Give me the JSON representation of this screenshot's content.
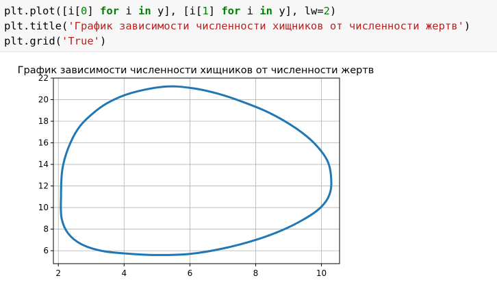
{
  "code_cell": {
    "lines": [
      [
        {
          "t": "plt.plot([i[",
          "c": "plain"
        },
        {
          "t": "0",
          "c": "num"
        },
        {
          "t": "] ",
          "c": "plain"
        },
        {
          "t": "for",
          "c": "kw"
        },
        {
          "t": " i ",
          "c": "plain"
        },
        {
          "t": "in",
          "c": "kw"
        },
        {
          "t": " y], [i[",
          "c": "plain"
        },
        {
          "t": "1",
          "c": "num"
        },
        {
          "t": "] ",
          "c": "plain"
        },
        {
          "t": "for",
          "c": "kw"
        },
        {
          "t": " i ",
          "c": "plain"
        },
        {
          "t": "in",
          "c": "kw"
        },
        {
          "t": " y], lw=",
          "c": "plain"
        },
        {
          "t": "2",
          "c": "num"
        },
        {
          "t": ")",
          "c": "plain"
        }
      ],
      [
        {
          "t": "plt.title(",
          "c": "plain"
        },
        {
          "t": "'График зависимости численности хищников от численности жертв'",
          "c": "str"
        },
        {
          "t": ")",
          "c": "plain"
        }
      ],
      [
        {
          "t": "plt.grid(",
          "c": "plain"
        },
        {
          "t": "'True'",
          "c": "str"
        },
        {
          "t": ")",
          "c": "plain"
        }
      ]
    ]
  },
  "chart_data": {
    "type": "line",
    "title": "График зависимости численности хищников от численности жертв",
    "xlabel": "",
    "ylabel": "",
    "xlim": [
      1.85,
      10.55
    ],
    "ylim": [
      4.8,
      22
    ],
    "xticks": [
      2,
      4,
      6,
      8,
      10
    ],
    "yticks": [
      6,
      8,
      10,
      12,
      14,
      16,
      18,
      20,
      22
    ],
    "grid": true,
    "series": [
      {
        "color": "#1f77b4",
        "x": [
          5.2,
          6.0,
          6.8,
          7.6,
          8.4,
          9.2,
          9.8,
          10.2,
          10.3,
          10.2,
          9.9,
          9.4,
          8.8,
          8.0,
          7.0,
          6.0,
          5.0,
          4.0,
          3.3,
          2.7,
          2.3,
          2.1,
          2.08,
          2.12,
          2.3,
          2.6,
          3.0,
          3.5,
          4.2,
          5.2
        ],
        "y": [
          21.2,
          21.1,
          20.6,
          19.8,
          18.8,
          17.4,
          15.9,
          14.2,
          12.2,
          10.9,
          9.8,
          8.8,
          7.9,
          7.0,
          6.2,
          5.7,
          5.6,
          5.75,
          6.0,
          6.6,
          7.6,
          9.0,
          11.0,
          13.5,
          15.5,
          17.3,
          18.6,
          19.7,
          20.6,
          21.2
        ]
      }
    ]
  }
}
